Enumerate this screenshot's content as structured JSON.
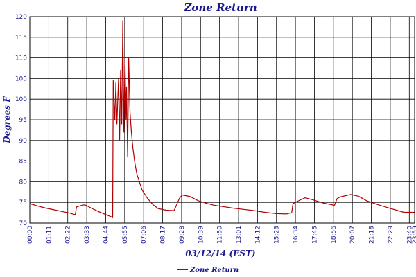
{
  "chart_data": {
    "type": "line",
    "title": "Zone Return",
    "xlabel": "03/12/14 (EST)",
    "ylabel": "Degrees F",
    "ylim": [
      70,
      120
    ],
    "yticks": [
      70,
      75,
      80,
      85,
      90,
      95,
      100,
      105,
      110,
      115,
      120
    ],
    "xlim_minutes": [
      0,
      1440
    ],
    "xtick_labels": [
      "00:00",
      "01:11",
      "02:22",
      "03:33",
      "04:44",
      "05:55",
      "07:06",
      "08:17",
      "09:28",
      "10:39",
      "11:50",
      "13:01",
      "14:12",
      "15:23",
      "16:34",
      "17:45",
      "18:56",
      "20:07",
      "21:18",
      "22:29",
      "23:40",
      "23:59"
    ],
    "grid": true,
    "legend": "bottom-center",
    "series": [
      {
        "name": "Zone Return",
        "color": "#b00000",
        "x_minutes": [
          0,
          30,
          60,
          90,
          120,
          150,
          170,
          175,
          200,
          210,
          230,
          260,
          290,
          305,
          310,
          312,
          318,
          322,
          326,
          332,
          336,
          340,
          344,
          348,
          352,
          356,
          360,
          362,
          366,
          370,
          375,
          380,
          386,
          392,
          400,
          410,
          420,
          440,
          460,
          480,
          510,
          540,
          560,
          570,
          600,
          630,
          660,
          690,
          720,
          760,
          800,
          840,
          880,
          920,
          960,
          980,
          985,
          1000,
          1030,
          1060,
          1100,
          1140,
          1150,
          1160,
          1200,
          1230,
          1260,
          1300,
          1350,
          1400,
          1440
        ],
        "values": [
          74.7,
          74.1,
          73.6,
          73.2,
          72.8,
          72.4,
          72.0,
          73.9,
          74.4,
          74.3,
          73.6,
          72.7,
          71.9,
          71.5,
          71.3,
          104.5,
          95,
          104,
          94,
          105,
          90,
          107,
          94,
          119,
          92,
          110,
          95,
          103,
          86,
          110,
          97,
          92,
          88,
          85,
          82,
          80,
          78,
          76,
          74.5,
          73.5,
          73.1,
          73.0,
          76.0,
          76.8,
          76.4,
          75.4,
          74.8,
          74.3,
          74.0,
          73.6,
          73.3,
          73.0,
          72.6,
          72.3,
          72.2,
          72.5,
          74.7,
          75.2,
          76.1,
          75.6,
          74.8,
          74.3,
          75.9,
          76.3,
          76.9,
          76.5,
          75.4,
          74.5,
          73.5,
          72.6,
          72.6
        ]
      }
    ]
  }
}
